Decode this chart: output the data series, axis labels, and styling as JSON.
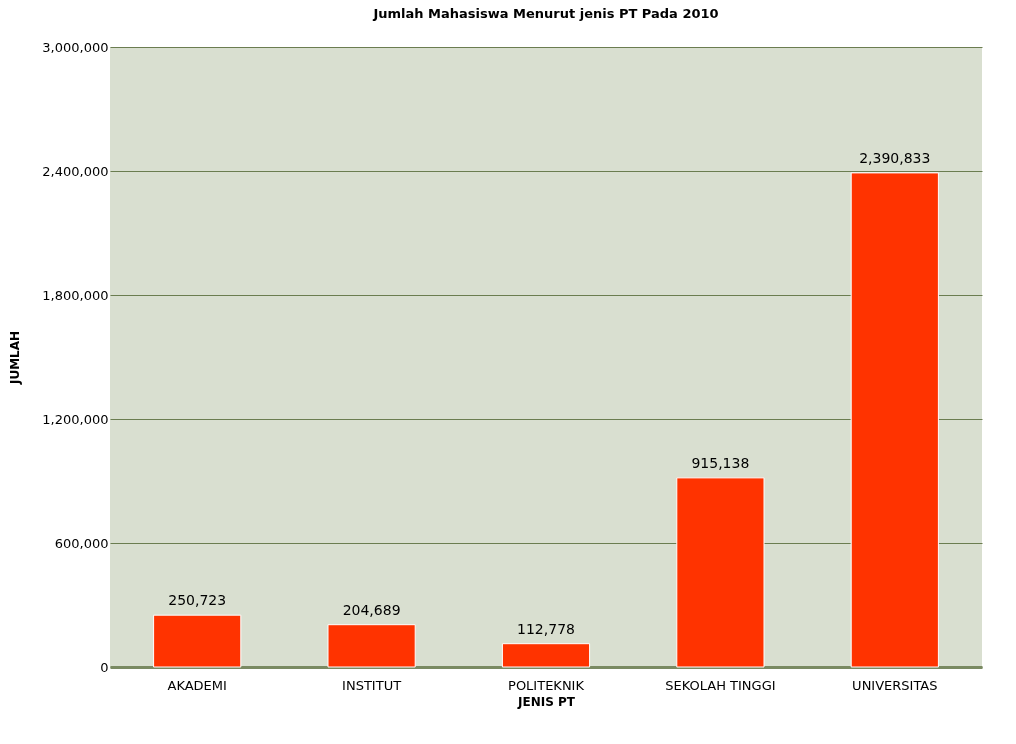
{
  "chart_data": {
    "type": "bar",
    "title": "Jumlah Mahasiswa Menurut jenis PT Pada 2010",
    "xlabel": "JENIS PT",
    "ylabel": "JUMLAH",
    "categories": [
      "AKADEMI",
      "INSTITUT",
      "POLITEKNIK",
      "SEKOLAH TINGGI",
      "UNIVERSITAS"
    ],
    "values": [
      250723,
      204689,
      112778,
      915138,
      2390833
    ],
    "value_labels": [
      "250,723",
      "204,689",
      "112,778",
      "915,138",
      "2,390,833"
    ],
    "color": "#ff3300",
    "ylim": [
      0,
      3000000
    ],
    "yticks": [
      {
        "value": 0,
        "label": "0"
      },
      {
        "value": 600000,
        "label": "600,000"
      },
      {
        "value": 1200000,
        "label": "1,200,000"
      },
      {
        "value": 1800000,
        "label": "1,800,000"
      },
      {
        "value": 2400000,
        "label": "2,400,000"
      },
      {
        "value": 3000000,
        "label": "3,000,000"
      }
    ],
    "grid": "y"
  }
}
